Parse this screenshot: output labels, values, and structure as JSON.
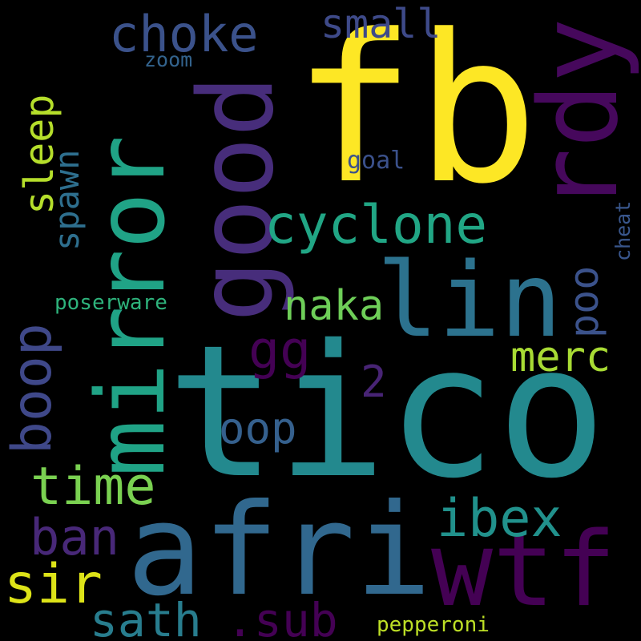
{
  "word_cloud": {
    "background": "#000000",
    "words": [
      {
        "text": "tico",
        "color": "#23898e"
      },
      {
        "text": "fb",
        "color": "#fde725"
      },
      {
        "text": "afri",
        "color": "#31688e"
      },
      {
        "text": "mirror",
        "color": "#20a386"
      },
      {
        "text": "lin",
        "color": "#2c728e"
      },
      {
        "text": "good",
        "color": "#472d7b"
      },
      {
        "text": "rdy",
        "color": "#46085c"
      },
      {
        "text": "wtf",
        "color": "#440154"
      },
      {
        "text": "cyclone",
        "color": "#21a685"
      },
      {
        "text": "choke",
        "color": "#3b528b"
      },
      {
        "text": "small",
        "color": "#3e4a89"
      },
      {
        "text": "zoom",
        "color": "#33638d"
      },
      {
        "text": "sleep",
        "color": "#b5de2b"
      },
      {
        "text": "spawn",
        "color": "#2e6f8e"
      },
      {
        "text": "goal",
        "color": "#3b518b"
      },
      {
        "text": "cheat",
        "color": "#39568c"
      },
      {
        "text": "naka",
        "color": "#6ece58"
      },
      {
        "text": "poo",
        "color": "#3b528b"
      },
      {
        "text": "poserware",
        "color": "#2eb37c"
      },
      {
        "text": "boop",
        "color": "#3f4889"
      },
      {
        "text": "gg",
        "color": "#440154"
      },
      {
        "text": "merc",
        "color": "#a8db34"
      },
      {
        "text": "2",
        "color": "#482475"
      },
      {
        "text": "oop",
        "color": "#35608d"
      },
      {
        "text": "time",
        "color": "#7ad151"
      },
      {
        "text": "ibex",
        "color": "#21918c"
      },
      {
        "text": "ban",
        "color": "#482878"
      },
      {
        "text": "sir",
        "color": "#dde318"
      },
      {
        "text": "sath",
        "color": "#287d8e"
      },
      {
        "text": ".sub",
        "color": "#440154"
      },
      {
        "text": "pepperoni",
        "color": "#bddf26"
      }
    ]
  }
}
